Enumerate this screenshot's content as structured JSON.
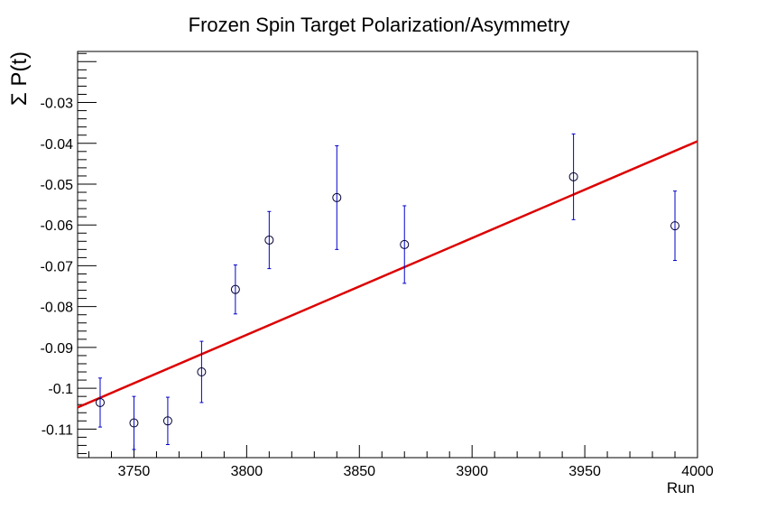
{
  "chart_data": {
    "type": "scatter",
    "title": "Frozen Spin Target Polarization/Asymmetry",
    "xlabel": "Run",
    "ylabel": "Σ P(t)",
    "xlim": [
      3725,
      4000
    ],
    "ylim": [
      -0.117,
      -0.0175
    ],
    "grid": false,
    "legend": "none",
    "x_ticks": [
      "3750",
      "3800",
      "3850",
      "3900",
      "3950",
      "4000"
    ],
    "y_ticks": [
      "-0.03",
      "-0.04",
      "-0.05",
      "-0.06",
      "-0.07",
      "-0.08",
      "-0.09",
      "-0.1",
      "-0.11"
    ],
    "series": [
      {
        "kind": "points_with_errors",
        "color": "#0000cc",
        "points": [
          {
            "x": 3735,
            "y": -0.1035,
            "err": 0.006
          },
          {
            "x": 3750,
            "y": -0.1085,
            "err": 0.0065
          },
          {
            "x": 3765,
            "y": -0.108,
            "err": 0.0058
          },
          {
            "x": 3780,
            "y": -0.096,
            "err": 0.0075
          },
          {
            "x": 3795,
            "y": -0.0758,
            "err": 0.006
          },
          {
            "x": 3810,
            "y": -0.0637,
            "err": 0.007
          },
          {
            "x": 3840,
            "y": -0.0533,
            "err": 0.0127
          },
          {
            "x": 3870,
            "y": -0.0648,
            "err": 0.0095
          },
          {
            "x": 3945,
            "y": -0.0482,
            "err": 0.0105
          },
          {
            "x": 3990,
            "y": -0.0602,
            "err": 0.0085
          }
        ]
      },
      {
        "kind": "fit_line",
        "color": "#dd0000",
        "points": [
          {
            "x": 3725,
            "y": -0.1047
          },
          {
            "x": 4000,
            "y": -0.0395
          }
        ]
      }
    ]
  }
}
